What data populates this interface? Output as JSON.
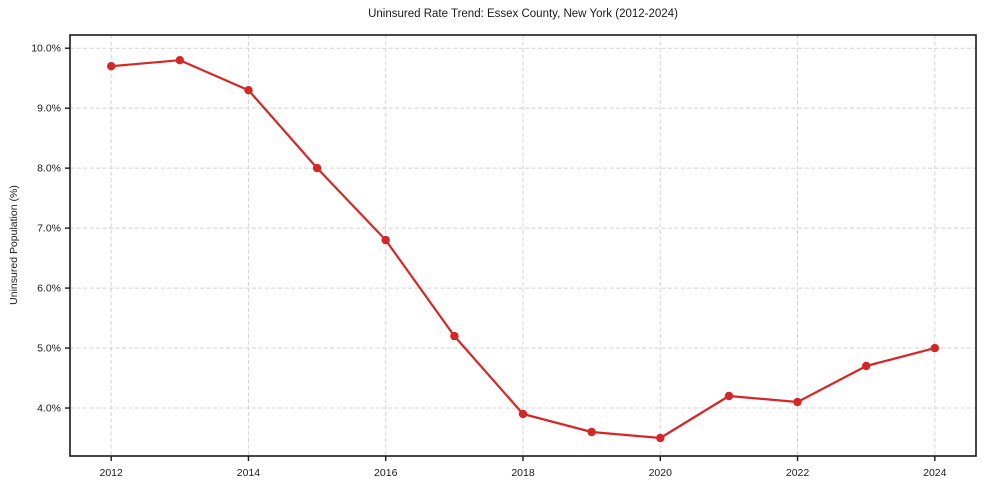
{
  "chart_data": {
    "type": "line",
    "title": "Uninsured Rate Trend: Essex County, New York (2012-2024)",
    "xlabel": "",
    "ylabel": "Uninsured Population (%)",
    "x": [
      2012,
      2013,
      2014,
      2015,
      2016,
      2017,
      2018,
      2019,
      2020,
      2021,
      2022,
      2023,
      2024
    ],
    "series": [
      {
        "name": "Uninsured Rate",
        "values": [
          9.7,
          9.8,
          9.3,
          8.0,
          6.8,
          5.2,
          3.9,
          3.6,
          3.5,
          4.2,
          4.1,
          4.7,
          5.0
        ]
      }
    ],
    "xticks": [
      2012,
      2014,
      2016,
      2018,
      2020,
      2022,
      2024
    ],
    "xtick_labels": [
      "2012",
      "2014",
      "2016",
      "2018",
      "2020",
      "2022",
      "2024"
    ],
    "yticks": [
      4,
      5,
      6,
      7,
      8,
      9,
      10
    ],
    "ytick_labels": [
      "4.0%",
      "5.0%",
      "6.0%",
      "7.0%",
      "8.0%",
      "9.0%",
      "10.0%"
    ],
    "xlim": [
      2011.4,
      2024.6
    ],
    "ylim": [
      3.2,
      10.22
    ],
    "grid": true,
    "grid_style": "dashed",
    "legend": false,
    "colors": {
      "line": "#d62728",
      "marker": "#d62728",
      "grid": "#d4d4d4",
      "frame": "#1a1a1a",
      "background": "#ffffff"
    }
  }
}
